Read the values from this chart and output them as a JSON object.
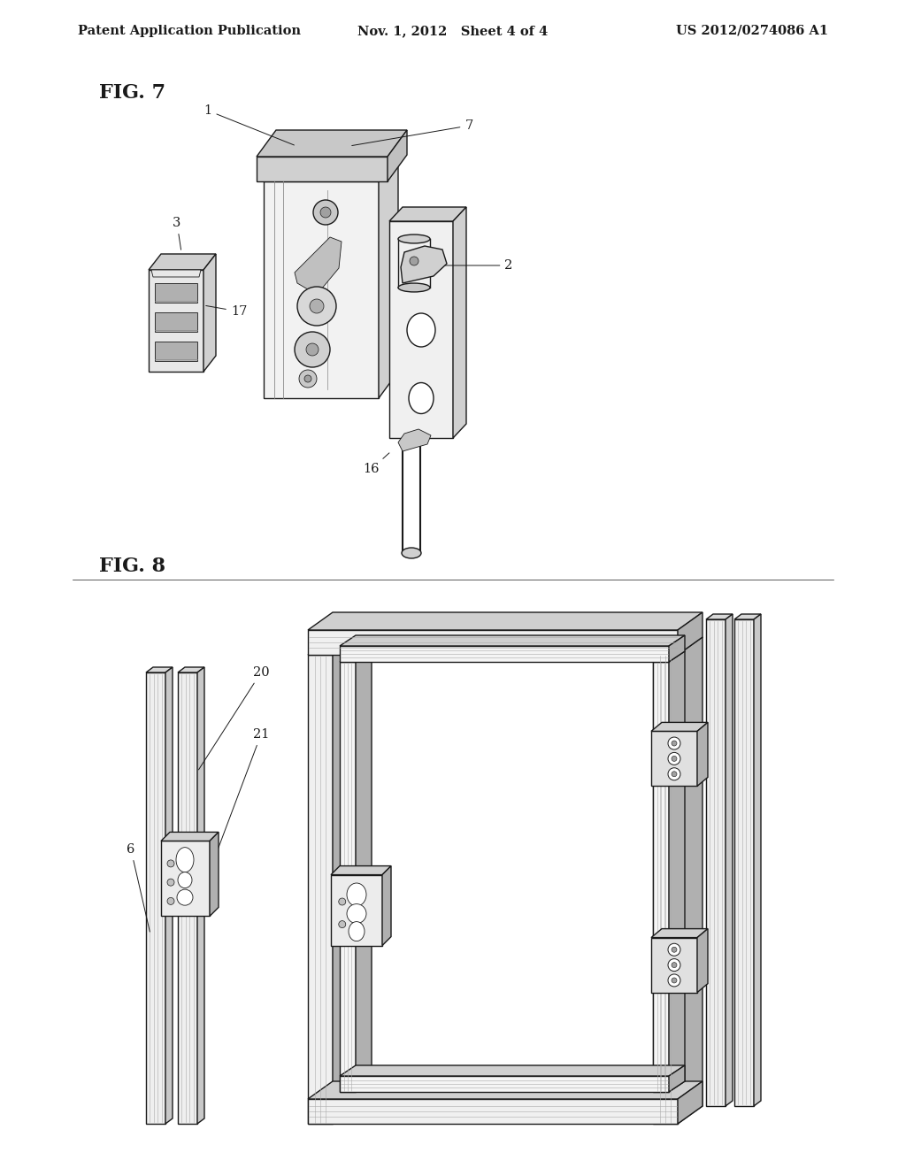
{
  "background_color": "#ffffff",
  "header_left": "Patent Application Publication",
  "header_middle": "Nov. 1, 2012   Sheet 4 of 4",
  "header_right": "US 2012/0274086 A1",
  "fig7_label": "FIG. 7",
  "fig8_label": "FIG. 8",
  "line_color": "#1a1a1a",
  "gray_light": "#e8e8e8",
  "gray_mid": "#d0d0d0",
  "gray_dark": "#b0b0b0",
  "annotation_fontsize": 10.5
}
